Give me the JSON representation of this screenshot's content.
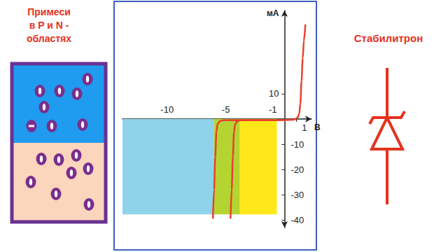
{
  "left_panel": {
    "title": [
      "Примеси",
      "в P и N -",
      "областях"
    ]
  },
  "right_panel": {
    "label": "Стабилитрон"
  },
  "chart_data": {
    "type": "line",
    "x_label": "В",
    "y_label": "мА",
    "xlim": [
      -13.8,
      2.3
    ],
    "ylim": [
      -43,
      43
    ],
    "xticks": [
      -10,
      -5,
      -1,
      1
    ],
    "yticks": [
      -40,
      -30,
      -20,
      -10,
      10
    ],
    "grid": false,
    "regions": [
      {
        "x": [
          -13.8,
          -6.0
        ],
        "y": [
          -37.8,
          0
        ],
        "color": "#8fd3ea"
      },
      {
        "x": [
          -6.0,
          -3.8
        ],
        "y": [
          -37.8,
          0
        ],
        "color": "#b4d431"
      },
      {
        "x": [
          -3.8,
          -0.65
        ],
        "y": [
          -37.8,
          0
        ],
        "color": "#ffe81a"
      }
    ],
    "series": [
      {
        "color": "#e8402c",
        "x": [
          -0.3,
          0.8,
          1.1,
          1.25,
          1.35,
          1.45,
          1.55,
          1.65,
          1.78
        ],
        "values": [
          -0.5,
          -0.3,
          0.5,
          2,
          6,
          15,
          24,
          31,
          37.5
        ]
      },
      {
        "color": "#e8402c",
        "x": [
          -0.3,
          -5.2,
          -5.5,
          -5.7,
          -5.8,
          -5.9,
          -6.0,
          -6.1
        ],
        "values": [
          -0.5,
          -0.5,
          -0.8,
          -2,
          -5,
          -15,
          -28,
          -39.5
        ]
      },
      {
        "color": "#e8402c",
        "x": [
          -0.3,
          -3.7,
          -4.0,
          -4.2,
          -4.3,
          -4.4,
          -4.5,
          -4.6
        ],
        "values": [
          -0.5,
          -0.5,
          -0.8,
          -2,
          -5,
          -15,
          -28,
          -39.5
        ]
      }
    ]
  }
}
